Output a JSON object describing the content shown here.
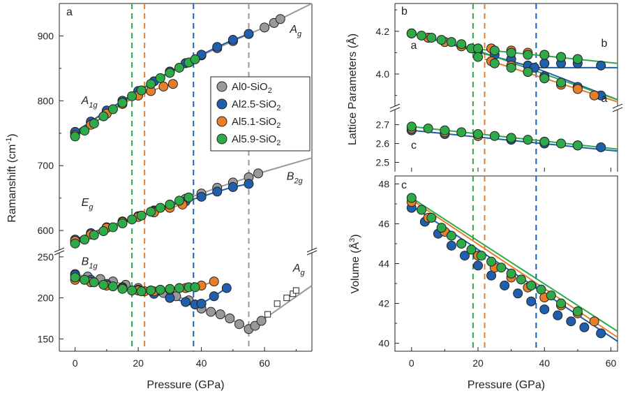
{
  "chart_data": [
    {
      "panel": "a",
      "type": "scatter",
      "xlabel": "Pressure (GPa)",
      "ylabel": "Ramanshift (cm-1)",
      "xlim": [
        -5,
        75
      ],
      "xticks": [
        0,
        20,
        40,
        60
      ],
      "broken_y_axis": true,
      "ylim_upper": [
        570,
        950
      ],
      "yticks_upper": [
        600,
        700,
        800,
        900
      ],
      "ylim_lower": [
        135,
        255
      ],
      "yticks_lower": [
        150,
        200,
        250
      ],
      "legend": {
        "position": "center-right",
        "entries": [
          {
            "label": "Al0-SiO2",
            "color": "#999999"
          },
          {
            "label": "Al2.5-SiO2",
            "color": "#1f5fad"
          },
          {
            "label": "Al5.1-SiO2",
            "color": "#e87d2a"
          },
          {
            "label": "Al5.9-SiO2",
            "color": "#2eaa48"
          }
        ]
      },
      "vlines": [
        {
          "x": 18,
          "color": "#2eaa48"
        },
        {
          "x": 22,
          "color": "#e87d2a"
        },
        {
          "x": 37.5,
          "color": "#1f5fad"
        },
        {
          "x": 55,
          "color": "#999999"
        }
      ],
      "mode_labels": [
        {
          "text": "A1g",
          "x": 2,
          "y": 795
        },
        {
          "text": "Ag",
          "x": 68,
          "y": 905
        },
        {
          "text": "Eg",
          "x": 2,
          "y": 638
        },
        {
          "text": "B2g",
          "x": 67,
          "y": 678
        },
        {
          "text": "B1g",
          "x": 2,
          "y": 240
        },
        {
          "text": "Ag",
          "x": 69,
          "y": 232
        }
      ],
      "series": [
        {
          "name": "Al0-SiO2",
          "mode": "A1g/Ag",
          "x": [
            0,
            5,
            10,
            15,
            20,
            25,
            30,
            35,
            40,
            45,
            50,
            55,
            60,
            63,
            65
          ],
          "y": [
            750,
            767,
            784,
            800,
            815,
            830,
            845,
            858,
            870,
            881,
            892,
            903,
            913,
            920,
            926
          ]
        },
        {
          "name": "Al2.5-SiO2",
          "mode": "A1g/Ag",
          "x": [
            0,
            5,
            10,
            15,
            20,
            25,
            30,
            35,
            40,
            45,
            50,
            55
          ],
          "y": [
            752,
            768,
            785,
            800,
            815,
            830,
            845,
            858,
            871,
            883,
            894,
            903
          ]
        },
        {
          "name": "Al5.1-SiO2",
          "mode": "A1g",
          "x": [
            0,
            5,
            10,
            15,
            20,
            24,
            28,
            31
          ],
          "y": [
            747,
            763,
            780,
            795,
            808,
            815,
            822,
            826
          ]
        },
        {
          "name": "Al5.9-SiO2",
          "mode": "A1g",
          "x": [
            0,
            3,
            6,
            9,
            12,
            15,
            18,
            21,
            24,
            27,
            30,
            33,
            36,
            38
          ],
          "y": [
            745,
            754,
            765,
            776,
            787,
            797,
            807,
            816,
            826,
            835,
            843,
            851,
            859,
            864
          ]
        },
        {
          "name": "Al0-SiO2",
          "mode": "Eg/B2g",
          "x": [
            0,
            5,
            10,
            15,
            20,
            25,
            30,
            35,
            40,
            45,
            50,
            55,
            58
          ],
          "y": [
            583,
            594,
            604,
            613,
            622,
            631,
            640,
            649,
            657,
            666,
            674,
            682,
            688
          ]
        },
        {
          "name": "Al2.5-SiO2",
          "mode": "Eg/B2g",
          "x": [
            0,
            5,
            10,
            15,
            20,
            25,
            30,
            35,
            40,
            45,
            50,
            55
          ],
          "y": [
            586,
            596,
            605,
            614,
            622,
            630,
            638,
            645,
            652,
            660,
            667,
            672
          ]
        },
        {
          "name": "Al5.1-SiO2",
          "mode": "Eg",
          "x": [
            0,
            5,
            10,
            15,
            20,
            25,
            30,
            34
          ],
          "y": [
            584,
            594,
            604,
            613,
            621,
            628,
            635,
            640
          ]
        },
        {
          "name": "Al5.9-SiO2",
          "mode": "Eg",
          "x": [
            0,
            3,
            6,
            9,
            12,
            15,
            18,
            21,
            24,
            27,
            30,
            33,
            36
          ],
          "y": [
            580,
            586,
            593,
            599,
            605,
            611,
            617,
            623,
            629,
            635,
            640,
            646,
            651
          ]
        },
        {
          "name": "Al0-SiO2",
          "mode": "B1g/Ag",
          "x": [
            0,
            4,
            8,
            12,
            16,
            20,
            24,
            28,
            32,
            36,
            40,
            43,
            46,
            49,
            52,
            55,
            57,
            59
          ],
          "y": [
            229,
            226,
            223,
            220,
            216,
            212,
            209,
            206,
            202,
            197,
            187,
            183,
            180,
            175,
            168,
            162,
            166,
            172
          ]
        },
        {
          "name": "Al0-SiO2 (open squares)",
          "mode": "Ag",
          "x": [
            61,
            64,
            67,
            69,
            70
          ],
          "y": [
            180,
            193,
            200,
            205,
            209
          ]
        },
        {
          "name": "Al2.5-SiO2",
          "mode": "B1g",
          "x": [
            0,
            5,
            10,
            15,
            20,
            25,
            30,
            35,
            38,
            40,
            44,
            48
          ],
          "y": [
            228,
            222,
            217,
            213,
            210,
            205,
            200,
            195,
            192,
            193,
            202,
            212
          ]
        },
        {
          "name": "Al5.1-SiO2",
          "mode": "B1g",
          "x": [
            0,
            5,
            10,
            15,
            20,
            22,
            25,
            30,
            35,
            40,
            44
          ],
          "y": [
            222,
            219,
            215,
            212,
            209,
            208,
            208,
            210,
            212,
            215,
            220
          ]
        },
        {
          "name": "Al5.9-SiO2",
          "mode": "B1g",
          "x": [
            0,
            3,
            6,
            9,
            12,
            15,
            18,
            21,
            24,
            27,
            30,
            33,
            36,
            38
          ],
          "y": [
            225,
            222,
            219,
            216,
            214,
            211,
            209,
            208,
            209,
            210,
            211,
            212,
            213,
            213
          ]
        }
      ]
    },
    {
      "panel": "b",
      "type": "scatter",
      "xlabel": "",
      "ylabel": "Lattice Parameters (Å)",
      "xlim": [
        -5,
        62
      ],
      "broken_y_axis": true,
      "ylim_upper": [
        3.85,
        4.33
      ],
      "yticks_upper": [
        4.0,
        4.2
      ],
      "ylim_lower": [
        2.45,
        2.78
      ],
      "yticks_lower": [
        2.5,
        2.6,
        2.7
      ],
      "axis_labels_on_curves": [
        "b",
        "a",
        "a",
        "c"
      ],
      "series": [
        {
          "name": "Al2.5-SiO2",
          "param": "a/b",
          "x": [
            0,
            5,
            10,
            15,
            20,
            25,
            30,
            35,
            37
          ],
          "y": [
            4.19,
            4.17,
            4.15,
            4.13,
            4.11,
            4.09,
            4.07,
            4.04,
            4.03
          ]
        },
        {
          "name": "Al2.5-SiO2",
          "param": "b",
          "x": [
            40,
            45,
            50,
            57
          ],
          "y": [
            4.05,
            4.05,
            4.05,
            4.04
          ]
        },
        {
          "name": "Al2.5-SiO2",
          "param": "a",
          "x": [
            40,
            45,
            50,
            57
          ],
          "y": [
            3.99,
            3.96,
            3.94,
            3.9
          ]
        },
        {
          "name": "Al5.1-SiO2",
          "param": "a/b",
          "x": [
            0,
            5,
            10,
            15,
            20
          ],
          "y": [
            4.19,
            4.17,
            4.15,
            4.13,
            4.12
          ]
        },
        {
          "name": "Al5.1-SiO2",
          "param": "b",
          "x": [
            24,
            30,
            35,
            40,
            45,
            50
          ],
          "y": [
            4.12,
            4.11,
            4.1,
            4.09,
            4.08,
            4.07
          ]
        },
        {
          "name": "Al5.1-SiO2",
          "param": "a",
          "x": [
            24,
            30,
            35,
            40,
            45,
            50,
            55
          ],
          "y": [
            4.06,
            4.04,
            4.01,
            3.98,
            3.95,
            3.93,
            3.9
          ]
        },
        {
          "name": "Al5.9-SiO2",
          "param": "a/b",
          "x": [
            0,
            3,
            6,
            9,
            12,
            15,
            18
          ],
          "y": [
            4.19,
            4.18,
            4.17,
            4.16,
            4.15,
            4.14,
            4.12
          ]
        },
        {
          "name": "Al5.9-SiO2",
          "param": "b",
          "x": [
            20,
            25,
            30,
            35,
            40,
            45,
            50
          ],
          "y": [
            4.12,
            4.11,
            4.1,
            4.09,
            4.09,
            4.08,
            4.07
          ]
        },
        {
          "name": "Al5.9-SiO2",
          "param": "a",
          "x": [
            20,
            25,
            30,
            35,
            40,
            45
          ],
          "y": [
            4.08,
            4.05,
            4.03,
            4.01,
            3.98,
            3.96
          ]
        },
        {
          "name": "Al2.5-SiO2",
          "param": "c",
          "x": [
            0,
            10,
            20,
            30,
            40,
            50,
            57
          ],
          "y": [
            2.67,
            2.65,
            2.64,
            2.62,
            2.6,
            2.59,
            2.58
          ]
        },
        {
          "name": "Al5.1-SiO2",
          "param": "c",
          "x": [
            0,
            10,
            20,
            30,
            40,
            50
          ],
          "y": [
            2.68,
            2.66,
            2.64,
            2.63,
            2.61,
            2.59
          ]
        },
        {
          "name": "Al5.9-SiO2",
          "param": "c",
          "x": [
            0,
            5,
            10,
            15,
            20,
            25,
            30,
            35,
            40,
            45,
            50
          ],
          "y": [
            2.69,
            2.68,
            2.67,
            2.66,
            2.65,
            2.64,
            2.63,
            2.62,
            2.61,
            2.6,
            2.59
          ]
        }
      ],
      "vlines": [
        {
          "x": 18.5,
          "color": "#2eaa48"
        },
        {
          "x": 22,
          "color": "#e87d2a"
        },
        {
          "x": 37.5,
          "color": "#1f5fad"
        }
      ]
    },
    {
      "panel": "c",
      "type": "scatter",
      "xlabel": "Pressure (GPa)",
      "ylabel": "Volume (Å3)",
      "xlim": [
        -5,
        62
      ],
      "xticks": [
        0,
        20,
        40,
        60
      ],
      "ylim": [
        39.6,
        48.4
      ],
      "yticks": [
        40,
        42,
        44,
        46,
        48
      ],
      "series": [
        {
          "name": "Al2.5-SiO2",
          "x": [
            0,
            4,
            8,
            12,
            16,
            20,
            24,
            28,
            32,
            36,
            40,
            44,
            48,
            52,
            57
          ],
          "y": [
            46.8,
            46.1,
            45.5,
            44.9,
            44.4,
            43.9,
            43.4,
            42.9,
            42.5,
            42.1,
            41.7,
            41.4,
            41.1,
            40.8,
            40.5
          ]
        },
        {
          "name": "Al5.1-SiO2",
          "x": [
            0,
            5,
            10,
            15,
            20,
            25,
            30,
            35,
            40,
            45,
            50,
            55
          ],
          "y": [
            47.1,
            46.3,
            45.6,
            45.0,
            44.4,
            43.8,
            43.3,
            42.8,
            42.3,
            41.9,
            41.5,
            41.1
          ]
        },
        {
          "name": "Al5.9-SiO2",
          "x": [
            0,
            3,
            6,
            9,
            12,
            15,
            18,
            21,
            24,
            27,
            30,
            33,
            36,
            39,
            42,
            45,
            50
          ],
          "y": [
            47.3,
            46.7,
            46.3,
            45.8,
            45.4,
            45.0,
            44.7,
            44.4,
            44.1,
            43.8,
            43.5,
            43.2,
            42.9,
            42.7,
            42.4,
            42.0,
            41.6
          ]
        }
      ],
      "vlines": [
        {
          "x": 18.5,
          "color": "#2eaa48"
        },
        {
          "x": 22,
          "color": "#e87d2a"
        },
        {
          "x": 37.5,
          "color": "#1f5fad"
        }
      ]
    }
  ]
}
